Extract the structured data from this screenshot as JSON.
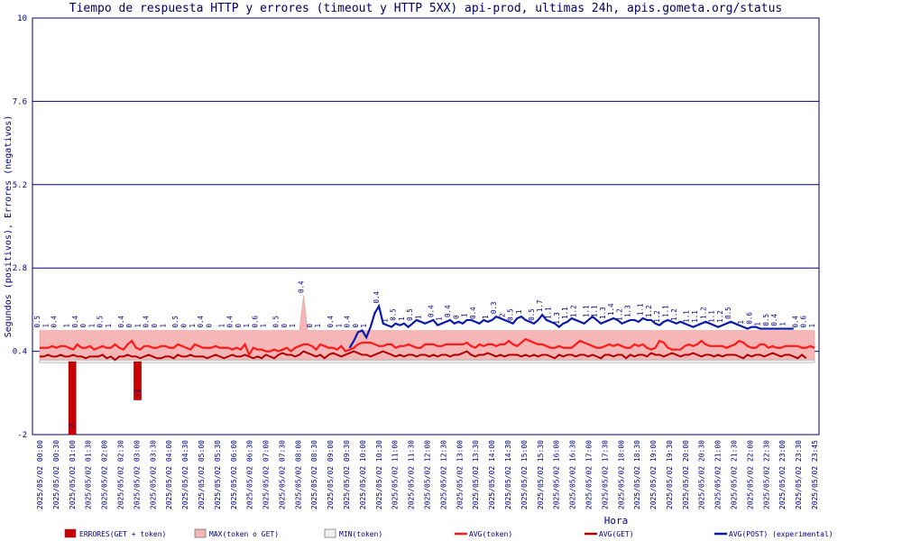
{
  "chart_data": {
    "type": "line",
    "title": "Tiempo de respuesta HTTP y errores (timeout y HTTP 5XX) api-prod, ultimas 24h, apis.gometa.org/status",
    "xlabel": "Hora",
    "ylabel": "Segundos (positivos), Errores (negativos)",
    "ylim": [
      -2,
      10
    ],
    "y_ticks": [
      -2,
      0.4,
      2.8,
      5.2,
      7.6,
      10
    ],
    "y_tick_labels": [
      "-2",
      "0.4",
      "2.8",
      "5.2",
      "7.6",
      "10"
    ],
    "x_tick_labels": [
      "2025/05/02 00:00",
      "2025/05/02 00:30",
      "2025/05/02 01:00",
      "2025/05/02 01:30",
      "2025/05/02 02:00",
      "2025/05/02 02:30",
      "2025/05/02 03:00",
      "2025/05/02 03:30",
      "2025/05/02 04:00",
      "2025/05/02 04:30",
      "2025/05/02 05:00",
      "2025/05/02 05:30",
      "2025/05/02 06:00",
      "2025/05/02 06:30",
      "2025/05/02 07:00",
      "2025/05/02 07:30",
      "2025/05/02 08:00",
      "2025/05/02 08:30",
      "2025/05/02 09:00",
      "2025/05/02 09:30",
      "2025/05/02 10:00",
      "2025/05/02 10:30",
      "2025/05/02 11:00",
      "2025/05/02 11:30",
      "2025/05/02 12:00",
      "2025/05/02 12:30",
      "2025/05/02 13:00",
      "2025/05/02 13:30",
      "2025/05/02 14:00",
      "2025/05/02 14:30",
      "2025/05/02 15:00",
      "2025/05/02 15:30",
      "2025/05/02 16:00",
      "2025/05/02 16:30",
      "2025/05/02 17:00",
      "2025/05/02 17:30",
      "2025/05/02 18:00",
      "2025/05/02 18:30",
      "2025/05/02 19:00",
      "2025/05/02 19:30",
      "2025/05/02 20:00",
      "2025/05/02 20:30",
      "2025/05/02 21:00",
      "2025/05/02 21:30",
      "2025/05/02 22:00",
      "2025/05/02 22:30",
      "2025/05/02 23:00",
      "2025/05/02 23:30",
      "2025/05/02 23:45"
    ],
    "legend": [
      {
        "name": "ERRORES(GET + token)",
        "color": "#cc0000",
        "kind": "bar"
      },
      {
        "name": "MAX(token o GET)",
        "color": "#f4b6b6",
        "kind": "area"
      },
      {
        "name": "MIN(token)",
        "color": "#f0f0f0",
        "kind": "area"
      },
      {
        "name": "AVG(token)",
        "color": "#ff1a1a",
        "kind": "line"
      },
      {
        "name": "AVG(GET)",
        "color": "#b00000",
        "kind": "line"
      },
      {
        "name": "AVG(POST) (experimental)",
        "color": "#0a1aa8",
        "kind": "line"
      }
    ],
    "legend_position": "bottom",
    "grid": true,
    "errors": [
      {
        "time": "2025/05/02 01:00",
        "value": -2
      },
      {
        "time": "2025/05/02 03:00",
        "value": -1
      }
    ],
    "max_series": [
      1,
      1,
      1,
      1,
      1,
      1,
      1,
      1,
      1,
      1,
      1,
      1,
      1,
      1,
      1,
      1,
      1,
      1,
      1,
      1,
      1,
      1,
      1,
      1,
      1,
      1,
      1,
      1,
      1,
      1,
      1,
      1,
      1,
      1,
      1,
      1,
      1,
      1,
      1,
      1,
      1,
      1,
      1,
      1,
      1,
      1,
      1,
      1,
      1,
      1,
      1,
      1,
      1,
      1,
      1,
      1,
      1,
      1,
      1,
      1,
      1,
      1,
      1,
      2,
      1,
      1,
      1,
      1,
      1,
      1,
      1,
      1,
      1,
      1,
      1,
      1,
      1,
      1,
      1,
      1,
      1,
      1,
      1,
      1,
      1,
      1,
      1,
      1,
      1,
      1,
      1,
      1,
      1,
      1,
      1,
      1,
      1,
      1,
      1,
      1,
      1,
      1,
      1,
      1,
      1,
      1,
      1,
      1,
      1,
      1,
      1,
      1,
      1,
      1,
      1,
      1,
      1,
      1,
      1,
      1,
      1,
      1,
      1,
      1,
      1,
      1,
      1,
      1,
      1,
      1,
      1,
      1,
      1,
      1,
      1,
      1,
      1,
      1,
      1,
      1,
      1,
      1,
      1,
      1,
      1,
      1,
      1,
      1,
      1,
      1,
      1,
      1,
      1,
      1,
      1,
      1,
      1,
      1,
      1,
      1,
      1,
      1,
      1,
      1,
      1,
      1,
      1,
      1,
      1,
      1,
      1,
      1,
      1,
      1,
      1,
      1,
      1,
      1,
      1,
      1,
      1,
      1,
      1,
      1,
      1,
      1,
      1,
      1,
      1,
      1,
      1,
      1
    ],
    "avg_token": [
      0.5,
      0.5,
      0.5,
      0.55,
      0.5,
      0.55,
      0.55,
      0.5,
      0.45,
      0.6,
      0.5,
      0.5,
      0.55,
      0.45,
      0.5,
      0.55,
      0.5,
      0.5,
      0.6,
      0.5,
      0.45,
      0.6,
      0.7,
      0.5,
      0.45,
      0.55,
      0.55,
      0.5,
      0.5,
      0.55,
      0.55,
      0.5,
      0.5,
      0.6,
      0.55,
      0.5,
      0.45,
      0.6,
      0.55,
      0.5,
      0.5,
      0.5,
      0.55,
      0.5,
      0.5,
      0.5,
      0.45,
      0.5,
      0.45,
      0.6,
      0.3,
      0.5,
      0.45,
      0.45,
      0.4,
      0.4,
      0.45,
      0.4,
      0.45,
      0.5,
      0.4,
      0.5,
      0.55,
      0.6,
      0.6,
      0.55,
      0.45,
      0.6,
      0.55,
      0.5,
      0.5,
      0.45,
      0.55,
      0.4,
      0.45,
      0.5,
      0.6,
      0.65,
      0.65,
      0.65,
      0.6,
      0.55,
      0.55,
      0.6,
      0.6,
      0.5,
      0.55,
      0.55,
      0.6,
      0.55,
      0.5,
      0.5,
      0.6,
      0.6,
      0.6,
      0.55,
      0.55,
      0.6,
      0.6,
      0.6,
      0.6,
      0.6,
      0.65,
      0.55,
      0.5,
      0.6,
      0.55,
      0.6,
      0.6,
      0.55,
      0.6,
      0.6,
      0.7,
      0.6,
      0.55,
      0.65,
      0.75,
      0.7,
      0.65,
      0.6,
      0.6,
      0.55,
      0.5,
      0.5,
      0.55,
      0.5,
      0.5,
      0.5,
      0.6,
      0.7,
      0.65,
      0.6,
      0.55,
      0.5,
      0.5,
      0.55,
      0.6,
      0.55,
      0.6,
      0.55,
      0.5,
      0.5,
      0.6,
      0.55,
      0.6,
      0.5,
      0.45,
      0.5,
      0.7,
      0.65,
      0.5,
      0.45,
      0.45,
      0.45,
      0.55,
      0.6,
      0.55,
      0.6,
      0.7,
      0.6,
      0.55,
      0.55,
      0.55,
      0.55,
      0.5,
      0.55,
      0.6,
      0.7,
      0.65,
      0.55,
      0.5,
      0.5,
      0.6,
      0.6,
      0.5,
      0.55,
      0.5,
      0.5,
      0.55,
      0.55,
      0.55,
      0.55,
      0.5,
      0.5,
      0.55,
      0.5
    ],
    "avg_get": [
      0.25,
      0.25,
      0.3,
      0.25,
      0.25,
      0.3,
      0.25,
      0.25,
      0.3,
      0.25,
      0.25,
      0.2,
      0.25,
      0.25,
      0.25,
      0.3,
      0.2,
      0.25,
      0.15,
      0.25,
      0.25,
      0.3,
      0.25,
      0.25,
      0.2,
      0.25,
      0.3,
      0.25,
      0.2,
      0.2,
      0.25,
      0.25,
      0.2,
      0.3,
      0.25,
      0.25,
      0.3,
      0.25,
      0.25,
      0.25,
      0.2,
      0.25,
      0.3,
      0.25,
      0.2,
      0.25,
      0.3,
      0.25,
      0.25,
      0.3,
      0.25,
      0.2,
      0.25,
      0.2,
      0.3,
      0.25,
      0.2,
      0.3,
      0.35,
      0.3,
      0.3,
      0.25,
      0.3,
      0.4,
      0.35,
      0.3,
      0.25,
      0.3,
      0.2,
      0.3,
      0.35,
      0.3,
      0.25,
      0.3,
      0.35,
      0.4,
      0.35,
      0.3,
      0.3,
      0.25,
      0.3,
      0.35,
      0.4,
      0.35,
      0.3,
      0.25,
      0.3,
      0.25,
      0.3,
      0.3,
      0.25,
      0.3,
      0.3,
      0.25,
      0.3,
      0.25,
      0.3,
      0.3,
      0.25,
      0.3,
      0.3,
      0.35,
      0.4,
      0.3,
      0.25,
      0.3,
      0.3,
      0.35,
      0.3,
      0.25,
      0.3,
      0.25,
      0.3,
      0.3,
      0.3,
      0.25,
      0.3,
      0.25,
      0.3,
      0.25,
      0.3,
      0.3,
      0.25,
      0.2,
      0.3,
      0.25,
      0.3,
      0.3,
      0.25,
      0.3,
      0.3,
      0.25,
      0.3,
      0.25,
      0.2,
      0.3,
      0.3,
      0.25,
      0.3,
      0.3,
      0.2,
      0.3,
      0.25,
      0.3,
      0.3,
      0.25,
      0.35,
      0.3,
      0.3,
      0.25,
      0.3,
      0.35,
      0.3,
      0.25,
      0.3,
      0.3,
      0.35,
      0.3,
      0.25,
      0.3,
      0.3,
      0.25,
      0.3,
      0.25,
      0.3,
      0.3,
      0.3,
      0.25,
      0.2,
      0.3,
      0.25,
      0.3,
      0.3,
      0.25,
      0.3,
      0.35,
      0.3,
      0.25,
      0.3,
      0.3,
      0.25,
      0.2,
      0.3,
      0.2
    ],
    "avg_post_start_index": 74,
    "avg_post": [
      0.5,
      0.7,
      0.95,
      1.0,
      0.8,
      1.1,
      1.5,
      1.7,
      1.2,
      1.15,
      1.1,
      1.2,
      1.15,
      1.2,
      1.1,
      1.2,
      1.3,
      1.25,
      1.2,
      1.25,
      1.3,
      1.15,
      1.2,
      1.25,
      1.3,
      1.2,
      1.25,
      1.2,
      1.3,
      1.3,
      1.25,
      1.2,
      1.3,
      1.25,
      1.3,
      1.4,
      1.35,
      1.3,
      1.25,
      1.2,
      1.35,
      1.4,
      1.3,
      1.25,
      1.2,
      1.3,
      1.45,
      1.3,
      1.25,
      1.2,
      1.1,
      1.2,
      1.25,
      1.35,
      1.3,
      1.25,
      1.2,
      1.3,
      1.4,
      1.3,
      1.2,
      1.25,
      1.3,
      1.35,
      1.3,
      1.2,
      1.25,
      1.3,
      1.3,
      1.25,
      1.35,
      1.3,
      1.3,
      1.2,
      1.15,
      1.25,
      1.3,
      1.25,
      1.2,
      1.25,
      1.2,
      1.15,
      1.1,
      1.15,
      1.2,
      1.25,
      1.2,
      1.15,
      1.1,
      1.15,
      1.2,
      1.25,
      1.2,
      1.15,
      1.1,
      1.05,
      1.1,
      1.1,
      1.05,
      1.05,
      1.05,
      1.05,
      1.05,
      1.05,
      1.05,
      1.05,
      1.05
    ],
    "min_series_value": 0.1,
    "point_labels": [
      "0.5",
      "1",
      "0.4",
      "1",
      "0.4",
      "0",
      "1",
      "0.5",
      "1",
      "0.4",
      "0",
      "1",
      "0.4",
      "0",
      "1",
      "0.5",
      "0",
      "1",
      "0.4",
      "0",
      "1",
      "0.4",
      "0",
      "1",
      "0.6",
      "1",
      "0.5",
      "0",
      "1",
      "0.4",
      "0",
      "1",
      "0.4",
      "1",
      "0.4",
      "0",
      "1",
      "0.4",
      "1",
      "0.5",
      "1",
      "0.5",
      "1",
      "0.4",
      "1",
      "0.4",
      "0",
      "1",
      "0.4",
      "1",
      "0.3",
      "2",
      "0.5",
      "1",
      "0.5",
      "1.7",
      "1.1",
      "1.3",
      "1.1",
      "1.2",
      "1.1",
      "1.1",
      "1.3",
      "1.4",
      "1.2",
      "1.3",
      "1.1",
      "1.2",
      "1.2",
      "1.1",
      "1.2",
      "1.1",
      "1.1",
      "1.2",
      "1.1",
      "1.2",
      "0.5",
      "1",
      "0.6",
      "1",
      "0.5",
      "0.4",
      "1",
      "0.4",
      "0.6",
      "1"
    ]
  }
}
